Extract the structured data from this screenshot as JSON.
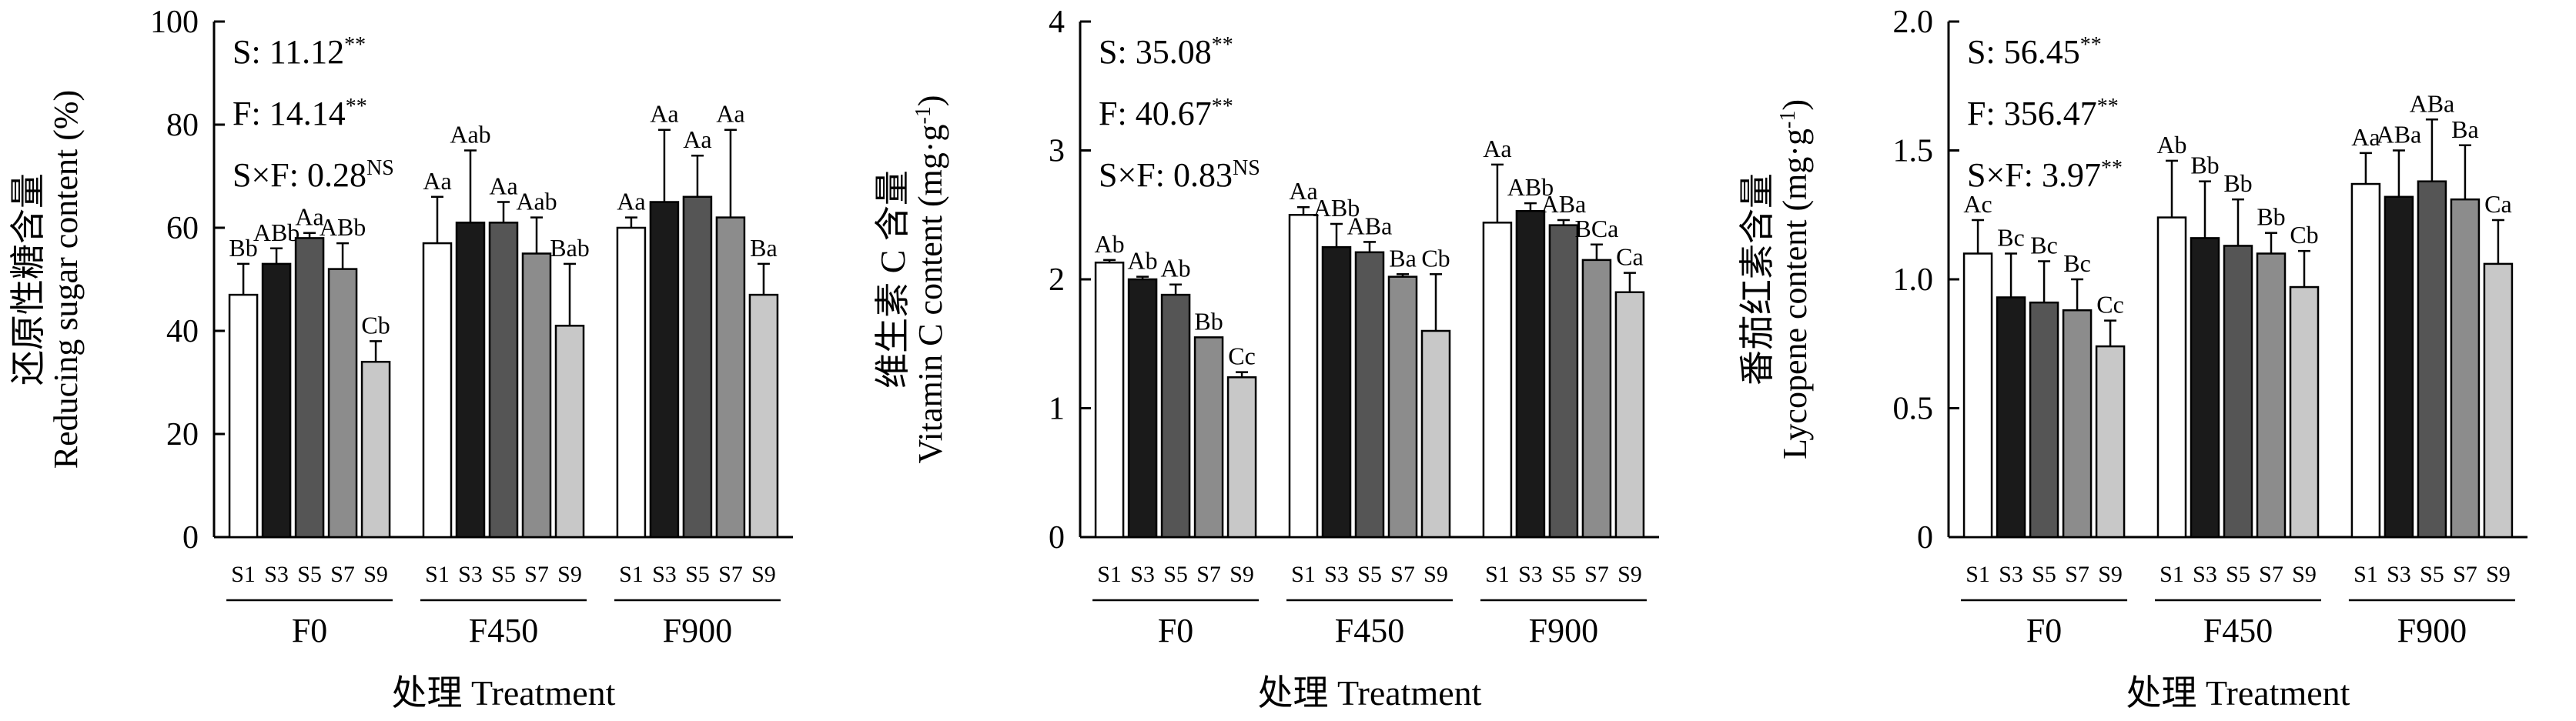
{
  "chart_data": [
    {
      "type": "bar",
      "ylabel_cn": "还原性糖含量",
      "ylabel_en": "Reducing sugar content (%)",
      "xlabel": "处理 Treatment",
      "ylim": [
        0,
        100
      ],
      "yticks": [
        "0",
        "20",
        "40",
        "60",
        "80",
        "100"
      ],
      "stats": [
        {
          "label": "S: 11.12",
          "sup": "**"
        },
        {
          "label": "F: 14.14",
          "sup": "**"
        },
        {
          "label": "S×F: 0.28",
          "sup": "NS"
        }
      ],
      "subcategories": [
        "S1",
        "S3",
        "S5",
        "S7",
        "S9"
      ],
      "groups": [
        {
          "name": "F0",
          "values": [
            47,
            53,
            58,
            52,
            34
          ],
          "errors": [
            6,
            3,
            1,
            5,
            4
          ],
          "letters": [
            "Bb",
            "ABb",
            "Aa",
            "ABb",
            "Cb"
          ]
        },
        {
          "name": "F450",
          "values": [
            57,
            61,
            61,
            55,
            41
          ],
          "errors": [
            9,
            14,
            4,
            7,
            12
          ],
          "letters": [
            "Aa",
            "Aab",
            "Aa",
            "Aab",
            "Bab"
          ]
        },
        {
          "name": "F900",
          "values": [
            60,
            65,
            66,
            62,
            47
          ],
          "errors": [
            2,
            14,
            8,
            17,
            6
          ],
          "letters": [
            "Aa",
            "Aa",
            "Aa",
            "Aa",
            "Ba"
          ]
        }
      ]
    },
    {
      "type": "bar",
      "ylabel_cn": "维生素 C 含量",
      "ylabel_en": "Vitamin C content (mg·g",
      "ylabel_en_sup": "-1",
      "ylabel_en_tail": ")",
      "xlabel": "处理 Treatment",
      "ylim": [
        0,
        4
      ],
      "yticks": [
        "0",
        "1",
        "2",
        "3",
        "4"
      ],
      "stats": [
        {
          "label": "S: 35.08",
          "sup": "**"
        },
        {
          "label": "F: 40.67",
          "sup": "**"
        },
        {
          "label": "S×F: 0.83",
          "sup": "NS"
        }
      ],
      "subcategories": [
        "S1",
        "S3",
        "S5",
        "S7",
        "S9"
      ],
      "groups": [
        {
          "name": "F0",
          "values": [
            2.13,
            2.0,
            1.88,
            1.55,
            1.24
          ],
          "errors": [
            0.02,
            0.02,
            0.08,
            0.0,
            0.04
          ],
          "letters": [
            "Ab",
            "Ab",
            "Ab",
            "Bb",
            "Cc"
          ]
        },
        {
          "name": "F450",
          "values": [
            2.5,
            2.25,
            2.21,
            2.02,
            1.6
          ],
          "errors": [
            0.06,
            0.18,
            0.08,
            0.02,
            0.44
          ],
          "letters": [
            "Aa",
            "ABb",
            "ABa",
            "Ba",
            "Cb"
          ]
        },
        {
          "name": "F900",
          "values": [
            2.44,
            2.53,
            2.42,
            2.15,
            1.9
          ],
          "errors": [
            0.45,
            0.06,
            0.04,
            0.12,
            0.15
          ],
          "letters": [
            "Aa",
            "ABb",
            "ABa",
            "BCa",
            "Ca"
          ]
        }
      ]
    },
    {
      "type": "bar",
      "ylabel_cn": "番茄红素含量",
      "ylabel_en": "Lycopene content (mg·g",
      "ylabel_en_sup": "-1",
      "ylabel_en_tail": ")",
      "xlabel": "处理 Treatment",
      "ylim": [
        0,
        2.0
      ],
      "yticks": [
        "0",
        "0.5",
        "1.0",
        "1.5",
        "2.0"
      ],
      "stats": [
        {
          "label": "S: 56.45",
          "sup": "**"
        },
        {
          "label": "F: 356.47",
          "sup": "**"
        },
        {
          "label": "S×F: 3.97",
          "sup": "**"
        }
      ],
      "subcategories": [
        "S1",
        "S3",
        "S5",
        "S7",
        "S9"
      ],
      "groups": [
        {
          "name": "F0",
          "values": [
            1.1,
            0.93,
            0.91,
            0.88,
            0.74
          ],
          "errors": [
            0.13,
            0.17,
            0.16,
            0.12,
            0.1
          ],
          "letters": [
            "Ac",
            "Bc",
            "Bc",
            "Bc",
            "Cc"
          ]
        },
        {
          "name": "F450",
          "values": [
            1.24,
            1.16,
            1.13,
            1.1,
            0.97
          ],
          "errors": [
            0.22,
            0.22,
            0.18,
            0.08,
            0.14
          ],
          "letters": [
            "Ab",
            "Bb",
            "Bb",
            "Bb",
            "Cb"
          ]
        },
        {
          "name": "F900",
          "values": [
            1.37,
            1.32,
            1.38,
            1.31,
            1.06
          ],
          "errors": [
            0.12,
            0.18,
            0.24,
            0.21,
            0.17
          ],
          "letters": [
            "Aa",
            "ABa",
            "ABa",
            "Ba",
            "Ca"
          ]
        }
      ]
    }
  ],
  "colors": {
    "bars": [
      "#ffffff",
      "#1a1a1a",
      "#555555",
      "#8c8c8c",
      "#c8c8c8"
    ],
    "stroke": "#000000"
  }
}
